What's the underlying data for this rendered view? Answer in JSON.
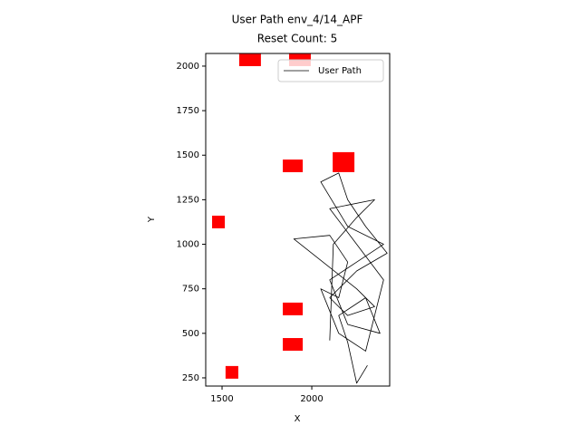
{
  "chart_data": {
    "type": "line",
    "title": "User Path env_4/14_APF",
    "subtitle": "Reset Count: 5",
    "xlabel": "X",
    "ylabel": "Y",
    "xlim": [
      1409,
      2434
    ],
    "ylim": [
      204,
      2071
    ],
    "xticks": [
      1500,
      2000
    ],
    "yticks": [
      250,
      500,
      750,
      1000,
      1250,
      1500,
      1750,
      2000
    ],
    "legend": "upper right",
    "obstacle_color": "#ff0000",
    "obstacles": [
      {
        "x": 1656,
        "y": 2060,
        "w": 121,
        "h": 120
      },
      {
        "x": 1934,
        "y": 2060,
        "w": 121,
        "h": 120
      },
      {
        "x": 1894,
        "y": 1440,
        "w": 111,
        "h": 71
      },
      {
        "x": 2177,
        "y": 1461,
        "w": 121,
        "h": 112
      },
      {
        "x": 1480,
        "y": 1125,
        "w": 71,
        "h": 71
      },
      {
        "x": 1894,
        "y": 637,
        "w": 111,
        "h": 71
      },
      {
        "x": 1894,
        "y": 438,
        "w": 111,
        "h": 71
      },
      {
        "x": 1555,
        "y": 281,
        "w": 71,
        "h": 71
      }
    ],
    "series": [
      {
        "name": "User Path",
        "color": "#000000",
        "x": [
          2310,
          2250,
          2200,
          2150,
          2300,
          2380,
          2200,
          2100,
          2250,
          2400,
          2200,
          2050,
          2150,
          2200,
          2300,
          2420,
          2250,
          2100,
          2200,
          2350,
          2250,
          1900,
          2100,
          2200,
          2150,
          2050,
          2150,
          2300,
          2400,
          2250,
          2100,
          2350,
          2250,
          2120,
          2100
        ],
        "y": [
          320,
          220,
          450,
          600,
          700,
          500,
          550,
          800,
          900,
          1000,
          1100,
          1350,
          1400,
          1250,
          1100,
          950,
          850,
          700,
          600,
          650,
          750,
          1030,
          1050,
          900,
          700,
          750,
          500,
          400,
          800,
          1000,
          1200,
          1250,
          1150,
          1000,
          460
        ]
      }
    ]
  }
}
